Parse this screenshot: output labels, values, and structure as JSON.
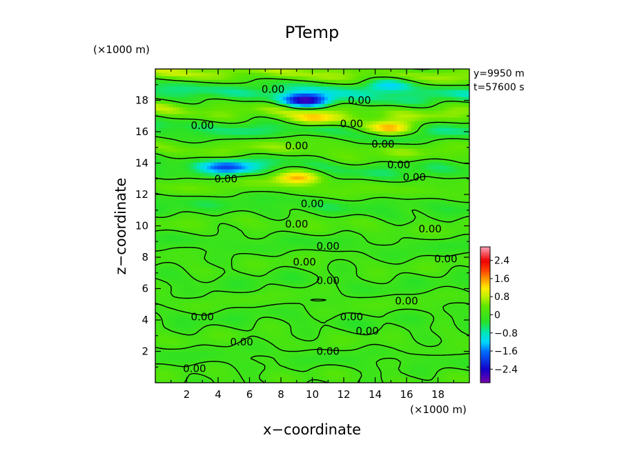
{
  "chart_data": {
    "type": "heatmap",
    "title": "PTemp",
    "xlabel": "x−coordinate",
    "ylabel": "z−coordinate",
    "x_unit": "(×1000 m)",
    "y_unit": "(×1000 m)",
    "info": [
      "y=9950  m",
      "t=57600  s"
    ],
    "xlim": [
      0,
      20
    ],
    "ylim": [
      0,
      20
    ],
    "x_ticks": [
      "2",
      "4",
      "6",
      "8",
      "10",
      "12",
      "14",
      "16",
      "18"
    ],
    "y_ticks": [
      "2",
      "4",
      "6",
      "8",
      "10",
      "12",
      "14",
      "16",
      "18"
    ],
    "colorbar": {
      "range": [
        -3.0,
        3.0
      ],
      "tick_values": [
        2.4,
        1.6,
        0.8,
        0,
        -0.8,
        -1.6,
        -2.4
      ],
      "tick_labels": [
        "2.4",
        "1.6",
        "0.8",
        "0",
        "−0.8",
        "−1.6",
        "−2.4"
      ]
    },
    "contour_label": "0.00",
    "contour_label_positions": [
      [
        7.5,
        18.7
      ],
      [
        13.0,
        18.0
      ],
      [
        3.0,
        16.4
      ],
      [
        12.5,
        16.5
      ],
      [
        9.0,
        15.1
      ],
      [
        14.5,
        15.2
      ],
      [
        15.5,
        13.9
      ],
      [
        4.5,
        13.0
      ],
      [
        16.5,
        13.1
      ],
      [
        10.0,
        11.4
      ],
      [
        9.0,
        10.1
      ],
      [
        17.5,
        9.8
      ],
      [
        11.0,
        8.7
      ],
      [
        9.5,
        7.7
      ],
      [
        18.5,
        7.9
      ],
      [
        11.0,
        6.5
      ],
      [
        16.0,
        5.2
      ],
      [
        3.0,
        4.2
      ],
      [
        12.5,
        4.2
      ],
      [
        13.5,
        3.3
      ],
      [
        5.5,
        2.6
      ],
      [
        11.0,
        2.0
      ],
      [
        2.5,
        0.9
      ]
    ],
    "extremes": [
      {
        "x": 9.6,
        "z": 18.0,
        "value": -2.7
      },
      {
        "x": 14.8,
        "z": 19.0,
        "value": -1.4
      },
      {
        "x": 4.7,
        "z": 13.8,
        "value": -1.5
      },
      {
        "x": 14.9,
        "z": 16.2,
        "value": 1.6
      },
      {
        "x": 10.0,
        "z": 16.8,
        "value": 1.4
      },
      {
        "x": 9.0,
        "z": 13.1,
        "value": 1.3
      }
    ]
  }
}
